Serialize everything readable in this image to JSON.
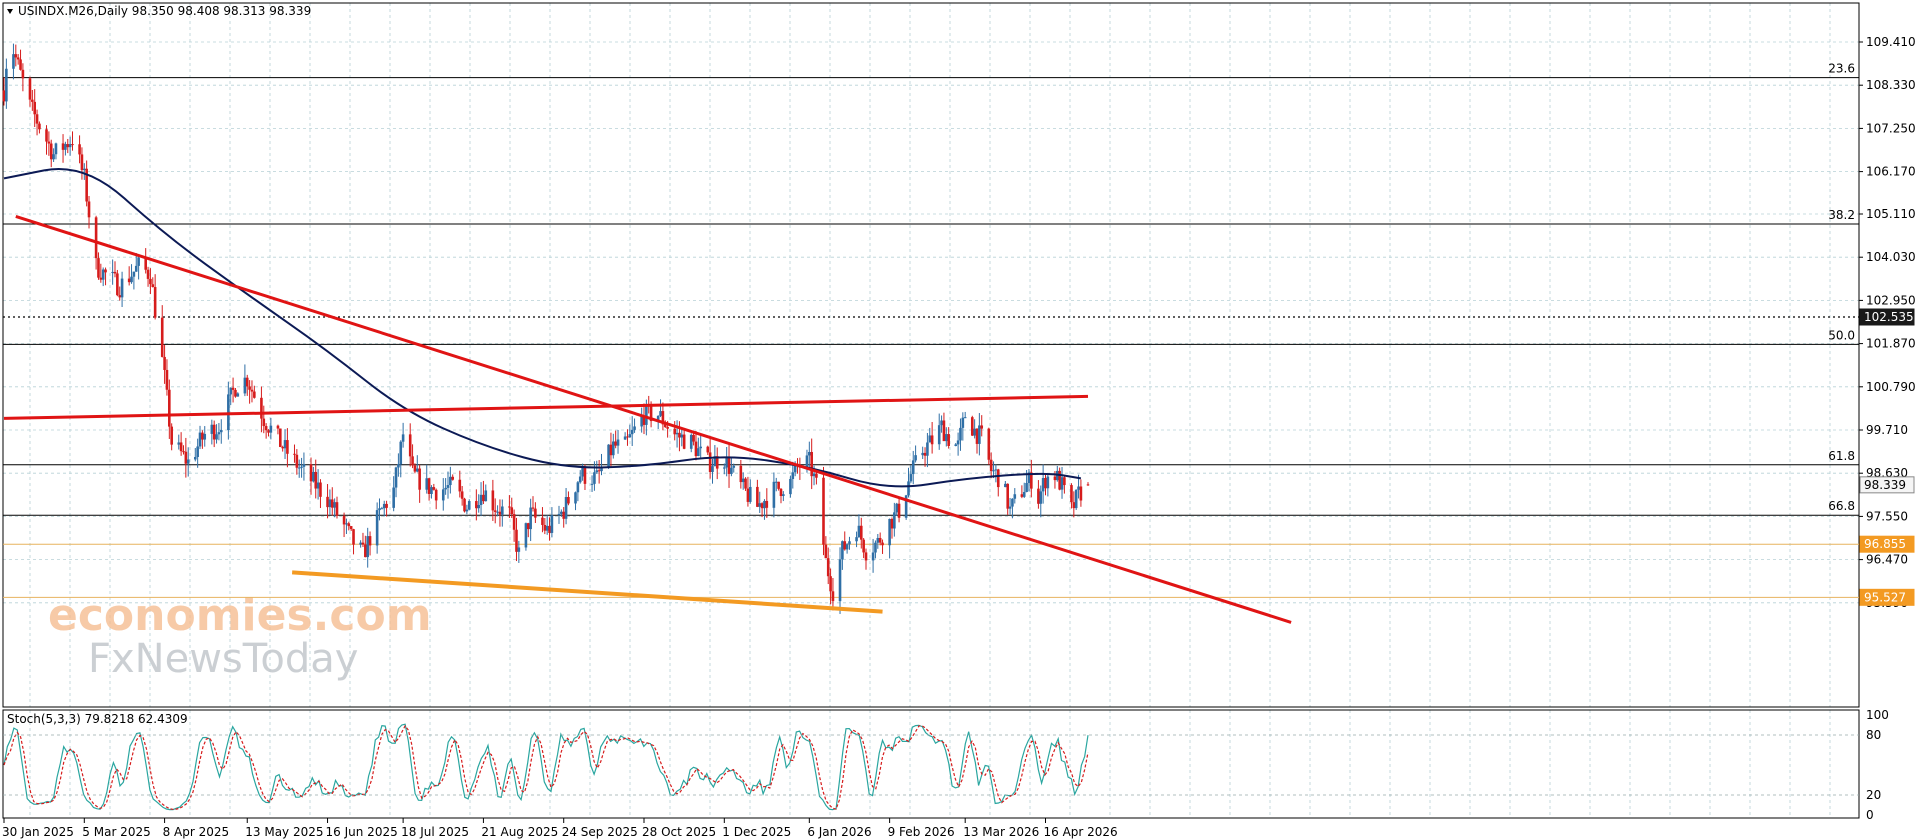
{
  "header": {
    "dropdown_icon": "triangle-down-icon",
    "symbol_info": "USINDX.M26,Daily  98.350 98.408 98.313 98.339"
  },
  "stoch_header": "Stoch(5,3,3) 79.8218 62.4309",
  "watermark": {
    "line1": "economies.com",
    "line2": "FxNewsToday"
  },
  "colors": {
    "bull": "#2f6fa6",
    "bear": "#d61c1c",
    "ma": "#0c1a55",
    "trend": "#e01414",
    "support": "#f39a22",
    "grid": "#b7d1d6",
    "stoch_main": "#2aa6a0",
    "stoch_signal": "#d61c1c"
  },
  "price_axis": {
    "ticks": [
      "109.410",
      "108.330",
      "107.250",
      "106.170",
      "105.110",
      "104.030",
      "102.950",
      "101.870",
      "100.790",
      "99.710",
      "98.630",
      "97.550",
      "96.470",
      "95.390"
    ]
  },
  "stoch_axis": {
    "ticks": [
      "100",
      "80",
      "20",
      "0"
    ]
  },
  "time_axis": {
    "labels": [
      "30 Jan 2025",
      "5 Mar 2025",
      "8 Apr 2025",
      "13 May 2025",
      "16 Jun 2025",
      "18 Jul 2025",
      "21 Aug 2025",
      "24 Sep 2025",
      "28 Oct 2025",
      "1 Dec 2025",
      "6 Jan 2026",
      "9 Feb 2026",
      "13 Mar 2026",
      "16 Apr 2026"
    ]
  },
  "fib_levels": [
    {
      "label": "23.6",
      "price": 108.52
    },
    {
      "label": "38.2",
      "price": 104.86
    },
    {
      "label": "50.0",
      "price": 101.85
    },
    {
      "label": "61.8",
      "price": 98.84
    },
    {
      "label": "66.8",
      "price": 97.58
    }
  ],
  "price_tags": [
    {
      "text": "102.535",
      "price": 102.535,
      "style": "dark",
      "line": "dotted"
    },
    {
      "text": "98.339",
      "price": 98.339,
      "style": "light",
      "line": "none"
    },
    {
      "text": "96.855",
      "price": 96.855,
      "style": "orange",
      "line": "orange"
    },
    {
      "text": "95.527",
      "price": 95.527,
      "style": "orange",
      "line": "orange"
    }
  ],
  "chart_data": {
    "type": "candlestick",
    "symbol": "USINDX.M26",
    "timeframe": "Daily",
    "ohlc_last": {
      "open": 98.35,
      "high": 98.408,
      "low": 98.313,
      "close": 98.339
    },
    "y_range": [
      95.0,
      110.4
    ],
    "moving_average_path": [
      [
        "30 Jan 2025",
        106.0
      ],
      [
        "5 Mar 2025",
        106.4
      ],
      [
        "8 Apr 2025",
        104.6
      ],
      [
        "13 May 2025",
        103.1
      ],
      [
        "16 Jun 2025",
        101.7
      ],
      [
        "18 Jul 2025",
        100.2
      ],
      [
        "21 Aug 2025",
        99.3
      ],
      [
        "24 Sep 2025",
        98.75
      ],
      [
        "28 Oct 2025",
        98.8
      ],
      [
        "1 Dec 2025",
        99.1
      ],
      [
        "6 Jan 2026",
        98.8
      ],
      [
        "9 Feb 2026",
        98.2
      ],
      [
        "13 Mar 2026",
        98.5
      ],
      [
        "16 Apr 2026",
        98.65
      ],
      [
        "1 May 2026",
        98.5
      ]
    ],
    "trendlines": [
      {
        "name": "descending resistance",
        "color": "trend",
        "from": [
          "4 Feb 2025",
          105.05
        ],
        "to": [
          "29 Jul 2026",
          94.9
        ]
      },
      {
        "name": "horizontal channel top",
        "color": "trend",
        "from": [
          "30 Jan 2025",
          100.0
        ],
        "to": [
          "4 May 2026",
          100.55
        ]
      },
      {
        "name": "support line",
        "color": "support",
        "from": [
          "1 Jun 2025",
          96.15
        ],
        "to": [
          "6 Feb 2026",
          95.17
        ]
      }
    ],
    "stochastic": {
      "k": 79.8218,
      "d": 62.4309,
      "levels": [
        80,
        20
      ]
    },
    "candles_waypoints": [
      [
        "30 Jan 2025",
        108.2
      ],
      [
        "1 Feb 2025",
        109.6
      ],
      [
        "10 Feb 2025",
        107.8
      ],
      [
        "20 Feb 2025",
        106.6
      ],
      [
        "28 Feb 2025",
        107.0
      ],
      [
        "5 Mar 2025",
        106.0
      ],
      [
        "10 Mar 2025",
        103.8
      ],
      [
        "20 Mar 2025",
        103.3
      ],
      [
        "28 Mar 2025",
        103.8
      ],
      [
        "2 Apr 2025",
        103.6
      ],
      [
        "8 Apr 2025",
        101.0
      ],
      [
        "11 Apr 2025",
        99.4
      ],
      [
        "18 Apr 2025",
        98.9
      ],
      [
        "25 Apr 2025",
        99.6
      ],
      [
        "1 May 2025",
        99.8
      ],
      [
        "8 May 2025",
        100.8
      ],
      [
        "13 May 2025",
        101.0
      ],
      [
        "20 May 2025",
        100.0
      ],
      [
        "28 May 2025",
        99.3
      ],
      [
        "5 Jun 2025",
        98.7
      ],
      [
        "10 Jun 2025",
        98.4
      ],
      [
        "16 Jun 2025",
        98.0
      ],
      [
        "22 Jun 2025",
        97.4
      ],
      [
        "27 Jun 2025",
        96.9
      ],
      [
        "1 Jul 2025",
        96.6
      ],
      [
        "8 Jul 2025",
        97.6
      ],
      [
        "14 Jul 2025",
        98.2
      ],
      [
        "18 Jul 2025",
        99.6
      ],
      [
        "22 Jul 2025",
        98.6
      ],
      [
        "28 Jul 2025",
        98.3
      ],
      [
        "1 Aug 2025",
        98.2
      ],
      [
        "8 Aug 2025",
        98.3
      ],
      [
        "14 Aug 2025",
        97.8
      ],
      [
        "21 Aug 2025",
        98.2
      ],
      [
        "26 Aug 2025",
        97.8
      ],
      [
        "1 Sep 2025",
        97.6
      ],
      [
        "5 Sep 2025",
        96.6
      ],
      [
        "10 Sep 2025",
        97.6
      ],
      [
        "17 Sep 2025",
        97.2
      ],
      [
        "24 Sep 2025",
        97.7
      ],
      [
        "1 Oct 2025",
        98.6
      ],
      [
        "8 Oct 2025",
        98.5
      ],
      [
        "15 Oct 2025",
        99.3
      ],
      [
        "20 Oct 2025",
        99.3
      ],
      [
        "28 Oct 2025",
        100.1
      ],
      [
        "3 Nov 2025",
        100.1
      ],
      [
        "10 Nov 2025",
        99.6
      ],
      [
        "17 Nov 2025",
        99.4
      ],
      [
        "24 Nov 2025",
        98.9
      ],
      [
        "1 Dec 2025",
        99.0
      ],
      [
        "8 Dec 2025",
        98.3
      ],
      [
        "15 Dec 2025",
        97.8
      ],
      [
        "22 Dec 2025",
        98.2
      ],
      [
        "29 Dec 2025",
        98.4
      ],
      [
        "1 Jan 2026",
        98.8
      ],
      [
        "6 Jan 2026",
        98.9
      ],
      [
        "9 Jan 2026",
        98.3
      ],
      [
        "13 Jan 2026",
        96.4
      ],
      [
        "16 Jan 2026",
        95.7
      ],
      [
        "20 Jan 2026",
        96.7
      ],
      [
        "26 Jan 2026",
        97.3
      ],
      [
        "30 Jan 2026",
        96.7
      ],
      [
        "4 Feb 2026",
        96.9
      ],
      [
        "9 Feb 2026",
        97.4
      ],
      [
        "13 Feb 2026",
        97.7
      ],
      [
        "18 Feb 2026",
        98.6
      ],
      [
        "23 Feb 2026",
        99.2
      ],
      [
        "28 Feb 2026",
        99.5
      ],
      [
        "3 Mar 2026",
        99.8
      ],
      [
        "7 Mar 2026",
        99.4
      ],
      [
        "10 Mar 2026",
        99.3
      ],
      [
        "13 Mar 2026",
        100.1
      ],
      [
        "17 Mar 2026",
        99.7
      ],
      [
        "20 Mar 2026",
        99.5
      ],
      [
        "24 Mar 2026",
        98.7
      ],
      [
        "28 Mar 2026",
        98.5
      ],
      [
        "1 Apr 2026",
        97.7
      ],
      [
        "6 Apr 2026",
        98.2
      ],
      [
        "10 Apr 2026",
        98.5
      ],
      [
        "13 Apr 2026",
        98.0
      ],
      [
        "16 Apr 2026",
        98.5
      ],
      [
        "20 Apr 2026",
        98.6
      ],
      [
        "23 Apr 2026",
        98.3
      ],
      [
        "27 Apr 2026",
        97.7
      ],
      [
        "30 Apr 2026",
        98.1
      ],
      [
        "4 May 2026",
        98.339
      ]
    ]
  }
}
